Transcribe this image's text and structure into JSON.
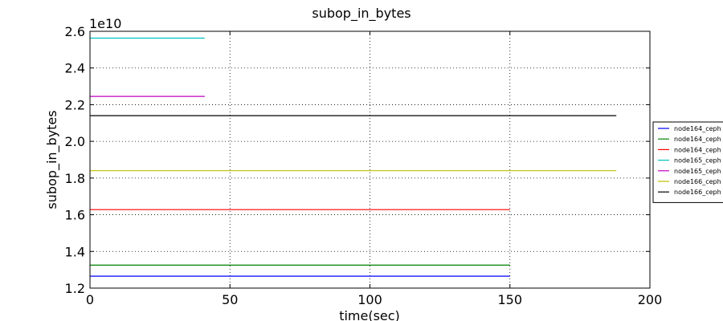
{
  "chart_data": {
    "type": "line",
    "title": "subop_in_bytes",
    "xlabel": "time(sec)",
    "ylabel": "subop_in_bytes",
    "y_offset_label": "1e10",
    "xlim": [
      0,
      200
    ],
    "ylim": [
      1.2,
      2.6
    ],
    "x_ticks": [
      "0",
      "50",
      "100",
      "150",
      "200"
    ],
    "y_ticks": [
      "1.2",
      "1.4",
      "1.6",
      "1.8",
      "2.0",
      "2.2",
      "2.4",
      "2.6"
    ],
    "grid": true,
    "legend_position": "right, outside plot",
    "series": [
      {
        "name": "node164_ceph",
        "color": "#0000ff",
        "x": [
          0,
          150
        ],
        "y": [
          1.265,
          1.265
        ]
      },
      {
        "name": "node164_ceph",
        "color": "#008000",
        "x": [
          0,
          150
        ],
        "y": [
          1.325,
          1.325
        ]
      },
      {
        "name": "node164_ceph",
        "color": "#ff0000",
        "x": [
          0,
          150
        ],
        "y": [
          1.628,
          1.628
        ]
      },
      {
        "name": "node165_ceph",
        "color": "#00bfbf",
        "x": [
          0,
          41
        ],
        "y": [
          2.563,
          2.563
        ]
      },
      {
        "name": "node165_ceph",
        "color": "#bf00bf",
        "x": [
          0,
          41
        ],
        "y": [
          2.245,
          2.245
        ]
      },
      {
        "name": "node166_ceph",
        "color": "#bfbf00",
        "x": [
          0,
          188
        ],
        "y": [
          1.84,
          1.84
        ]
      },
      {
        "name": "node166_ceph",
        "color": "#000000",
        "x": [
          0,
          188
        ],
        "y": [
          2.14,
          2.14
        ]
      }
    ]
  }
}
